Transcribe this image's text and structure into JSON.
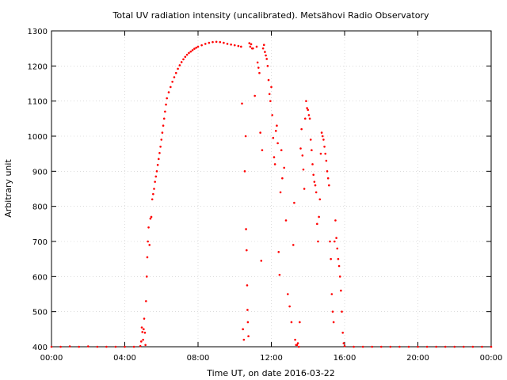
{
  "chart_data": {
    "type": "scatter",
    "title": "Total UV radiation intensity (uncalibrated). Metsähovi Radio Observatory",
    "xlabel": "Time UT, on date 2016-03-22",
    "ylabel": "Arbitrary unit",
    "xlim": [
      0,
      24
    ],
    "ylim": [
      400,
      1300
    ],
    "grid": true,
    "x_ticks": [
      0,
      4,
      8,
      12,
      16,
      20,
      24
    ],
    "x_tick_labels": [
      "00:00",
      "04:00",
      "08:00",
      "12:00",
      "16:00",
      "20:00",
      "00:00"
    ],
    "y_ticks": [
      400,
      500,
      600,
      700,
      800,
      900,
      1000,
      1100,
      1200,
      1300
    ],
    "y_tick_labels": [
      "400",
      "500",
      "600",
      "700",
      "800",
      "900",
      "1000",
      "1100",
      "1200",
      "1300"
    ],
    "series_color": "#ff0000",
    "series": [
      {
        "points": [
          [
            0.0,
            400
          ],
          [
            0.5,
            400
          ],
          [
            1.0,
            401
          ],
          [
            1.5,
            400
          ],
          [
            2.0,
            401
          ],
          [
            2.5,
            400
          ],
          [
            3.0,
            400
          ],
          [
            3.5,
            400
          ],
          [
            4.0,
            400
          ],
          [
            4.5,
            400
          ],
          [
            4.85,
            402
          ],
          [
            4.9,
            415
          ],
          [
            4.93,
            455
          ],
          [
            4.96,
            442
          ],
          [
            5.0,
            420
          ],
          [
            5.03,
            450
          ],
          [
            5.06,
            480
          ],
          [
            5.1,
            440
          ],
          [
            5.13,
            405
          ],
          [
            5.16,
            530
          ],
          [
            5.2,
            600
          ],
          [
            5.23,
            655
          ],
          [
            5.26,
            700
          ],
          [
            5.3,
            740
          ],
          [
            5.35,
            690
          ],
          [
            5.4,
            765
          ],
          [
            5.45,
            770
          ],
          [
            5.5,
            820
          ],
          [
            5.55,
            835
          ],
          [
            5.6,
            850
          ],
          [
            5.65,
            870
          ],
          [
            5.7,
            885
          ],
          [
            5.75,
            900
          ],
          [
            5.8,
            918
          ],
          [
            5.85,
            935
          ],
          [
            5.9,
            952
          ],
          [
            5.95,
            970
          ],
          [
            6.0,
            990
          ],
          [
            6.05,
            1010
          ],
          [
            6.1,
            1030
          ],
          [
            6.15,
            1050
          ],
          [
            6.2,
            1070
          ],
          [
            6.25,
            1090
          ],
          [
            6.3,
            1108
          ],
          [
            6.4,
            1125
          ],
          [
            6.5,
            1140
          ],
          [
            6.6,
            1155
          ],
          [
            6.7,
            1168
          ],
          [
            6.8,
            1180
          ],
          [
            6.9,
            1192
          ],
          [
            7.0,
            1202
          ],
          [
            7.1,
            1211
          ],
          [
            7.2,
            1219
          ],
          [
            7.3,
            1226
          ],
          [
            7.4,
            1232
          ],
          [
            7.5,
            1237
          ],
          [
            7.6,
            1241
          ],
          [
            7.7,
            1245
          ],
          [
            7.8,
            1249
          ],
          [
            7.9,
            1252
          ],
          [
            8.0,
            1255
          ],
          [
            8.2,
            1259
          ],
          [
            8.4,
            1263
          ],
          [
            8.6,
            1266
          ],
          [
            8.8,
            1268
          ],
          [
            9.0,
            1269
          ],
          [
            9.2,
            1268
          ],
          [
            9.4,
            1266
          ],
          [
            9.6,
            1263
          ],
          [
            9.8,
            1261
          ],
          [
            10.0,
            1259
          ],
          [
            10.2,
            1257
          ],
          [
            10.35,
            1255
          ],
          [
            10.4,
            1093
          ],
          [
            10.45,
            450
          ],
          [
            10.5,
            420
          ],
          [
            10.55,
            900
          ],
          [
            10.6,
            1000
          ],
          [
            10.62,
            735
          ],
          [
            10.65,
            675
          ],
          [
            10.68,
            575
          ],
          [
            10.7,
            505
          ],
          [
            10.72,
            470
          ],
          [
            10.75,
            430
          ],
          [
            10.8,
            1265
          ],
          [
            10.85,
            1255
          ],
          [
            10.9,
            1262
          ],
          [
            10.95,
            1250
          ],
          [
            11.0,
            1250
          ],
          [
            11.1,
            1115
          ],
          [
            11.2,
            1255
          ],
          [
            11.25,
            1210
          ],
          [
            11.3,
            1195
          ],
          [
            11.35,
            1180
          ],
          [
            11.4,
            1010
          ],
          [
            11.45,
            645
          ],
          [
            11.5,
            960
          ],
          [
            11.55,
            1250
          ],
          [
            11.6,
            1260
          ],
          [
            11.65,
            1240
          ],
          [
            11.7,
            1230
          ],
          [
            11.75,
            1220
          ],
          [
            11.8,
            1200
          ],
          [
            11.85,
            1160
          ],
          [
            11.9,
            1120
          ],
          [
            11.95,
            1100
          ],
          [
            12.0,
            1140
          ],
          [
            12.05,
            1060
          ],
          [
            12.1,
            995
          ],
          [
            12.15,
            940
          ],
          [
            12.2,
            920
          ],
          [
            12.25,
            1015
          ],
          [
            12.3,
            1030
          ],
          [
            12.35,
            980
          ],
          [
            12.4,
            670
          ],
          [
            12.45,
            605
          ],
          [
            12.5,
            840
          ],
          [
            12.55,
            960
          ],
          [
            12.6,
            880
          ],
          [
            12.7,
            910
          ],
          [
            12.8,
            760
          ],
          [
            12.9,
            550
          ],
          [
            13.0,
            515
          ],
          [
            13.1,
            470
          ],
          [
            13.2,
            690
          ],
          [
            13.25,
            810
          ],
          [
            13.3,
            420
          ],
          [
            13.35,
            405
          ],
          [
            13.4,
            405
          ],
          [
            13.45,
            410
          ],
          [
            13.5,
            400
          ],
          [
            13.55,
            470
          ],
          [
            13.6,
            965
          ],
          [
            13.65,
            1020
          ],
          [
            13.7,
            945
          ],
          [
            13.75,
            905
          ],
          [
            13.8,
            850
          ],
          [
            13.85,
            1050
          ],
          [
            13.9,
            1100
          ],
          [
            13.95,
            1080
          ],
          [
            14.0,
            1075
          ],
          [
            14.05,
            1060
          ],
          [
            14.1,
            1050
          ],
          [
            14.15,
            990
          ],
          [
            14.2,
            960
          ],
          [
            14.25,
            920
          ],
          [
            14.3,
            890
          ],
          [
            14.35,
            870
          ],
          [
            14.4,
            860
          ],
          [
            14.45,
            840
          ],
          [
            14.5,
            750
          ],
          [
            14.55,
            700
          ],
          [
            14.6,
            770
          ],
          [
            14.65,
            820
          ],
          [
            14.7,
            950
          ],
          [
            14.75,
            1010
          ],
          [
            14.8,
            1000
          ],
          [
            14.85,
            990
          ],
          [
            14.9,
            970
          ],
          [
            14.95,
            950
          ],
          [
            15.0,
            930
          ],
          [
            15.05,
            900
          ],
          [
            15.1,
            880
          ],
          [
            15.15,
            860
          ],
          [
            15.2,
            700
          ],
          [
            15.25,
            650
          ],
          [
            15.3,
            550
          ],
          [
            15.35,
            500
          ],
          [
            15.4,
            470
          ],
          [
            15.45,
            700
          ],
          [
            15.5,
            760
          ],
          [
            15.55,
            710
          ],
          [
            15.6,
            680
          ],
          [
            15.65,
            650
          ],
          [
            15.7,
            630
          ],
          [
            15.75,
            600
          ],
          [
            15.8,
            560
          ],
          [
            15.85,
            500
          ],
          [
            15.9,
            440
          ],
          [
            15.95,
            410
          ],
          [
            16.0,
            402
          ],
          [
            16.5,
            400
          ],
          [
            17.0,
            400
          ],
          [
            17.5,
            400
          ],
          [
            18.0,
            400
          ],
          [
            18.5,
            400
          ],
          [
            19.0,
            400
          ],
          [
            19.5,
            400
          ],
          [
            20.0,
            400
          ],
          [
            20.5,
            400
          ],
          [
            21.0,
            400
          ],
          [
            21.5,
            400
          ],
          [
            22.0,
            400
          ],
          [
            22.5,
            400
          ],
          [
            23.0,
            400
          ],
          [
            23.5,
            400
          ],
          [
            24.0,
            400
          ]
        ]
      }
    ]
  }
}
